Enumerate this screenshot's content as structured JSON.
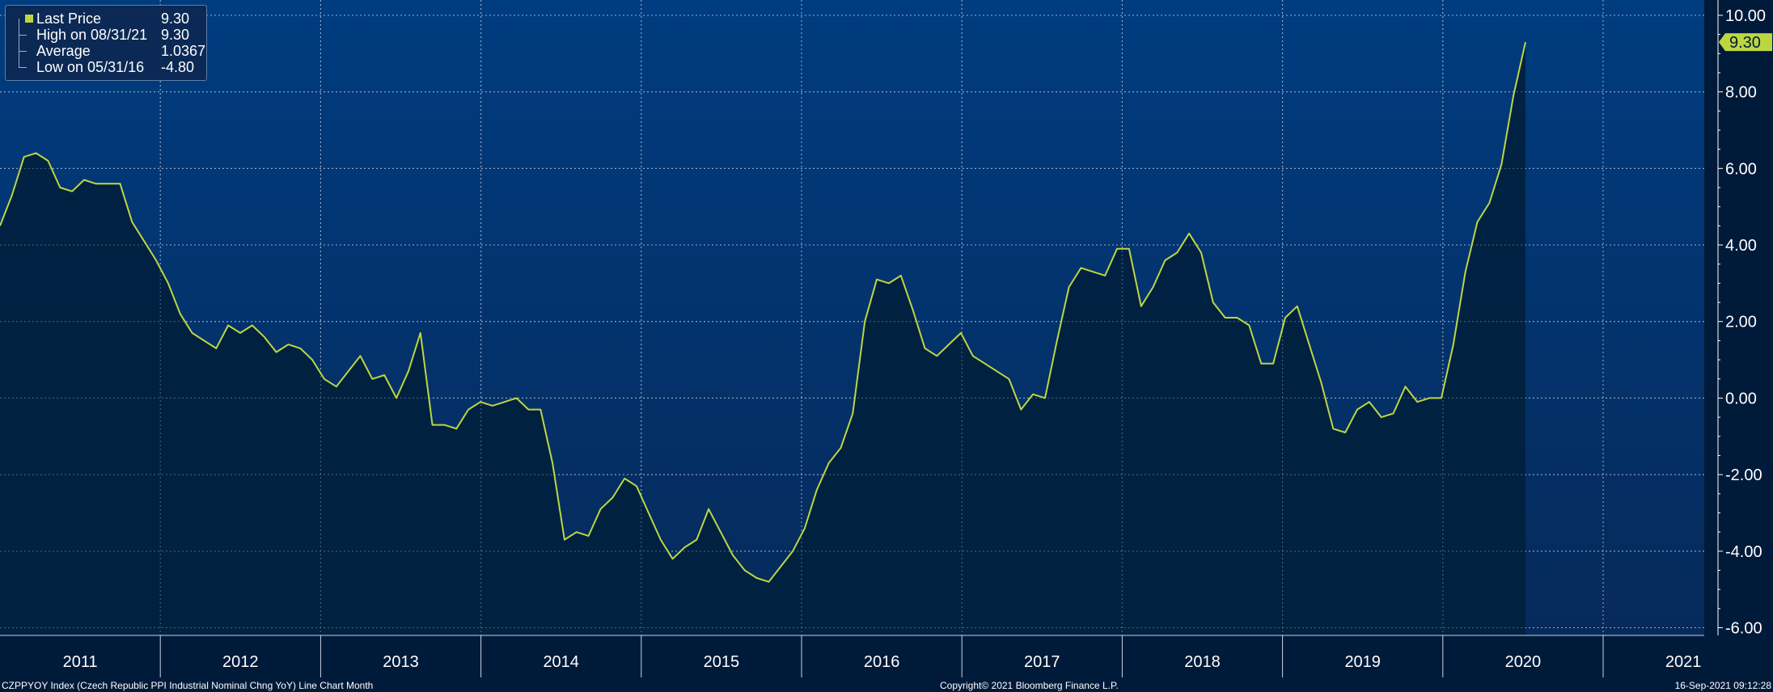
{
  "legend": {
    "last_price_label": "Last Price",
    "last_price_value": "9.30",
    "high_label": "High on 08/31/21",
    "high_value": "9.30",
    "average_label": "Average",
    "average_value": "1.0367",
    "low_label": "Low on 05/31/16",
    "low_value": "-4.80"
  },
  "footer": {
    "left": "CZPPYOY Index (Czech Republic PPI Industrial Nominal Chng YoY) Line Chart  Month",
    "center": "Copyright© 2021 Bloomberg Finance L.P.",
    "right": "16-Sep-2021 09:12:28"
  },
  "colors": {
    "line": "#bcd642",
    "background_top": "#003c80",
    "background_bottom": "#062a5a",
    "fill": "#01213f"
  },
  "chart_data": {
    "type": "area",
    "ylim": [
      -6.2,
      10.4
    ],
    "yticks": [
      "10.00",
      "8.00",
      "6.00",
      "4.00",
      "2.00",
      "0.00",
      "-2.00",
      "-4.00",
      "-6.00"
    ],
    "ytick_values": [
      10,
      8,
      6,
      4,
      2,
      0,
      -2,
      -4,
      -6
    ],
    "xtick_labels": [
      "2011",
      "2012",
      "2013",
      "2014",
      "2015",
      "2016",
      "2017",
      "2018",
      "2019",
      "2020",
      "2021"
    ],
    "last_value_label": "9.30",
    "grid": true,
    "series": [
      {
        "values": [
          4.5,
          5.3,
          6.3,
          6.4,
          6.2,
          5.5,
          5.4,
          5.7,
          5.6,
          5.6,
          5.6,
          4.6,
          4.1,
          3.6,
          3.0,
          2.2,
          1.7,
          1.5,
          1.3,
          1.9,
          1.7,
          1.9,
          1.6,
          1.2,
          1.4,
          1.3,
          1.0,
          0.5,
          0.3,
          0.7,
          1.1,
          0.5,
          0.6,
          0.0,
          0.7,
          1.7,
          -0.7,
          -0.7,
          -0.8,
          -0.3,
          -0.1,
          -0.2,
          -0.1,
          0.0,
          -0.3,
          -0.3,
          -1.7,
          -3.7,
          -3.5,
          -3.6,
          -2.9,
          -2.6,
          -2.1,
          -2.3,
          -3.0,
          -3.7,
          -4.2,
          -3.9,
          -3.7,
          -2.9,
          -3.5,
          -4.1,
          -4.5,
          -4.7,
          -4.8,
          -4.4,
          -4.0,
          -3.4,
          -2.4,
          -1.7,
          -1.3,
          -0.4,
          2.0,
          3.1,
          3.0,
          3.2,
          2.3,
          1.3,
          1.1,
          1.4,
          1.7,
          1.1,
          0.9,
          0.7,
          0.5,
          -0.3,
          0.1,
          0.0,
          1.5,
          2.9,
          3.4,
          3.3,
          3.2,
          3.9,
          3.9,
          2.4,
          2.9,
          3.6,
          3.8,
          4.3,
          3.8,
          2.5,
          2.1,
          2.1,
          1.9,
          0.9,
          0.9,
          2.1,
          2.4,
          1.4,
          0.4,
          -0.8,
          -0.9,
          -0.3,
          -0.1,
          -0.5,
          -0.4,
          0.3,
          -0.1,
          0.0,
          0.0,
          1.4,
          3.3,
          4.6,
          5.1,
          6.1,
          7.9,
          9.3
        ]
      }
    ]
  }
}
